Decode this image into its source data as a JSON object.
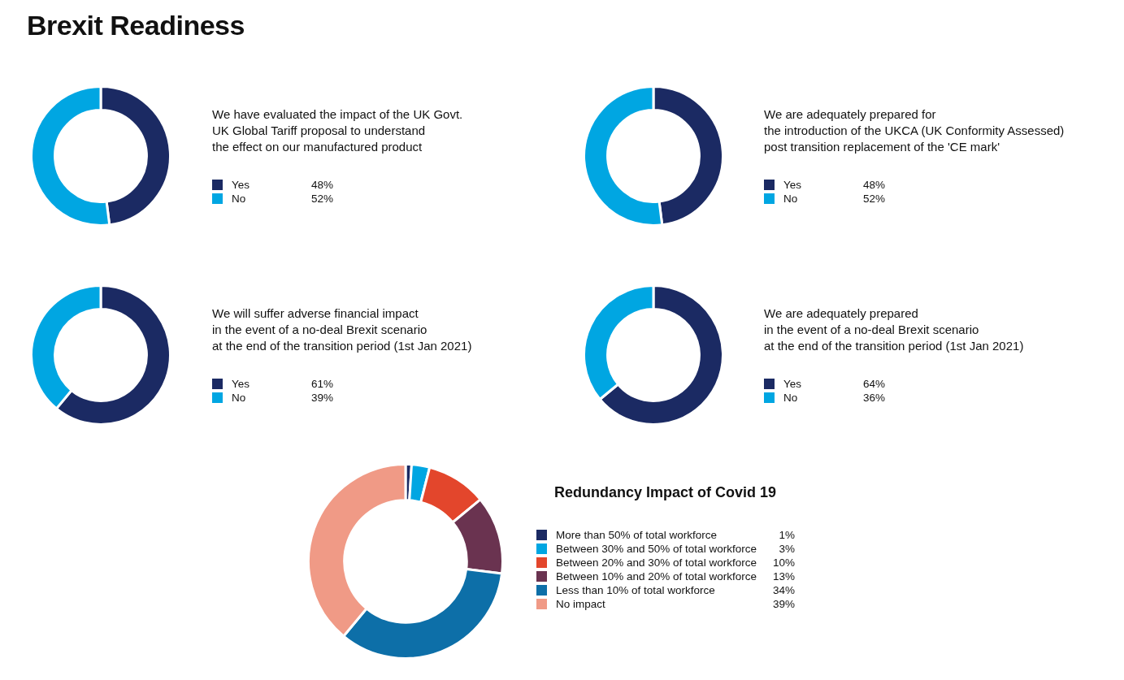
{
  "chart_data": [
    {
      "type": "other",
      "title": "Brexit Readiness"
    },
    {
      "type": "donut",
      "subtitle": "We have evaluated the impact of the UK Govt.\nUK Global Tariff proposal to understand\nthe effect on our manufactured product",
      "categories": [
        "Yes",
        "No"
      ],
      "values": [
        48,
        52
      ],
      "value_labels": [
        "48%",
        "52%"
      ],
      "colors": [
        "#1b2a63",
        "#00a6e2"
      ],
      "legend": "right"
    },
    {
      "type": "donut",
      "subtitle": "We are adequately prepared for\nthe introduction of the UKCA (UK Conformity Assessed)\npost transition replacement of the 'CE mark'",
      "categories": [
        "Yes",
        "No"
      ],
      "values": [
        48,
        52
      ],
      "value_labels": [
        "48%",
        "52%"
      ],
      "colors": [
        "#1b2a63",
        "#00a6e2"
      ],
      "legend": "right"
    },
    {
      "type": "donut",
      "subtitle": "We will suffer adverse financial impact\nin the event of a no-deal Brexit scenario\nat the end of the transition period (1st Jan 2021)",
      "categories": [
        "Yes",
        "No"
      ],
      "values": [
        61,
        39
      ],
      "value_labels": [
        "61%",
        "39%"
      ],
      "colors": [
        "#1b2a63",
        "#00a6e2"
      ],
      "legend": "right"
    },
    {
      "type": "donut",
      "subtitle": "We are adequately prepared\nin the event of a no-deal Brexit scenario\nat the end of the transition period (1st Jan 2021)",
      "categories": [
        "Yes",
        "No"
      ],
      "values": [
        64,
        36
      ],
      "value_labels": [
        "64%",
        "36%"
      ],
      "colors": [
        "#1b2a63",
        "#00a6e2"
      ],
      "legend": "right"
    },
    {
      "type": "donut",
      "title": "Redundancy Impact of Covid 19",
      "categories": [
        "More than 50% of total workforce",
        "Between 30% and 50% of total workforce",
        "Between 20% and 30% of total workforce",
        "Between 10% and 20% of total workforce",
        "Less than 10% of total workforce",
        "No impact"
      ],
      "values": [
        1,
        3,
        10,
        13,
        34,
        39
      ],
      "value_labels": [
        "1%",
        "3%",
        "10%",
        "13%",
        "34%",
        "39%"
      ],
      "colors": [
        "#1b2a63",
        "#00a6e2",
        "#e3462c",
        "#6a3350",
        "#0d6fa8",
        "#f09a86"
      ],
      "legend": "right"
    }
  ]
}
